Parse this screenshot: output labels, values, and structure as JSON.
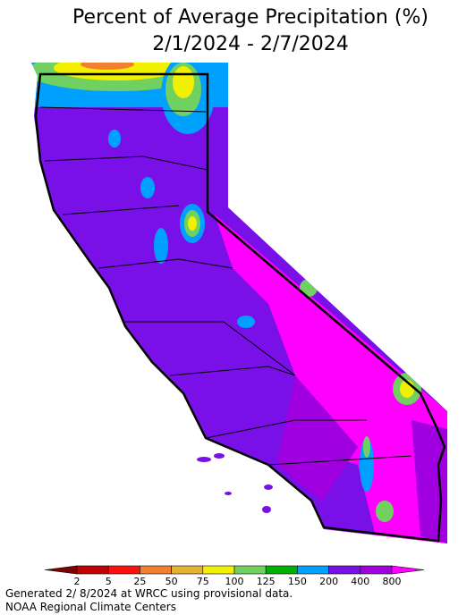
{
  "title": "Percent of Average Precipitation (%)",
  "subtitle": "2/1/2024 - 2/7/2024",
  "legend": {
    "ticks": [
      2,
      5,
      25,
      50,
      75,
      100,
      125,
      150,
      200,
      400,
      800
    ],
    "colors": [
      "#7f0000",
      "#c40000",
      "#ff1010",
      "#f08030",
      "#e8b030",
      "#f0f000",
      "#70d060",
      "#00b000",
      "#00a0ff",
      "#7a10e8",
      "#a000e0",
      "#ff00ff"
    ]
  },
  "footer": [
    "Generated 2/ 8/2024 at WRCC using provisional data.",
    "NOAA Regional Climate Centers"
  ]
}
